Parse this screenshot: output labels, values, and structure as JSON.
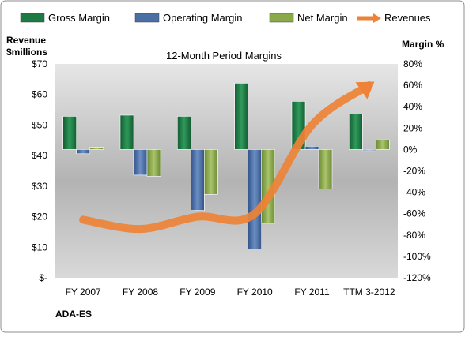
{
  "chart_data": {
    "type": "bar",
    "title": "12-Month Period Margins",
    "ylabel_left_lines": [
      "Revenue",
      "$millions"
    ],
    "ylabel_right": "Margin %",
    "footer_label": "ADA-ES",
    "categories": [
      "FY 2007",
      "FY 2008",
      "FY 2009",
      "FY 2010",
      "FY 2011",
      "TTM 3-2012"
    ],
    "left_axis": {
      "ticks": [
        "$-",
        "$10",
        "$20",
        "$30",
        "$40",
        "$50",
        "$60",
        "$70"
      ],
      "ylim": [
        0,
        70
      ]
    },
    "right_axis": {
      "ticks": [
        "-120%",
        "-100%",
        "-80%",
        "-60%",
        "-40%",
        "-20%",
        "0%",
        "20%",
        "40%",
        "60%",
        "80%"
      ],
      "ylim": [
        -120,
        80
      ]
    },
    "series": [
      {
        "name": "Gross Margin",
        "axis": "right",
        "kind": "bar",
        "color": "#1e7a44",
        "values": [
          31,
          32,
          31,
          62,
          45,
          33
        ]
      },
      {
        "name": "Operating Margin",
        "axis": "right",
        "kind": "bar",
        "color": "#4a6fa5",
        "values": [
          -4,
          -24,
          -57,
          -93,
          3,
          -1
        ]
      },
      {
        "name": "Net Margin",
        "axis": "right",
        "kind": "bar",
        "color": "#8aaa4a",
        "values": [
          2,
          -25,
          -42,
          -69,
          -37,
          9
        ]
      },
      {
        "name": "Revenues",
        "axis": "left",
        "kind": "line",
        "color": "#ee8236",
        "values": [
          19,
          16,
          20,
          21,
          50,
          63
        ]
      }
    ],
    "legend_position": "top",
    "grid": false
  }
}
